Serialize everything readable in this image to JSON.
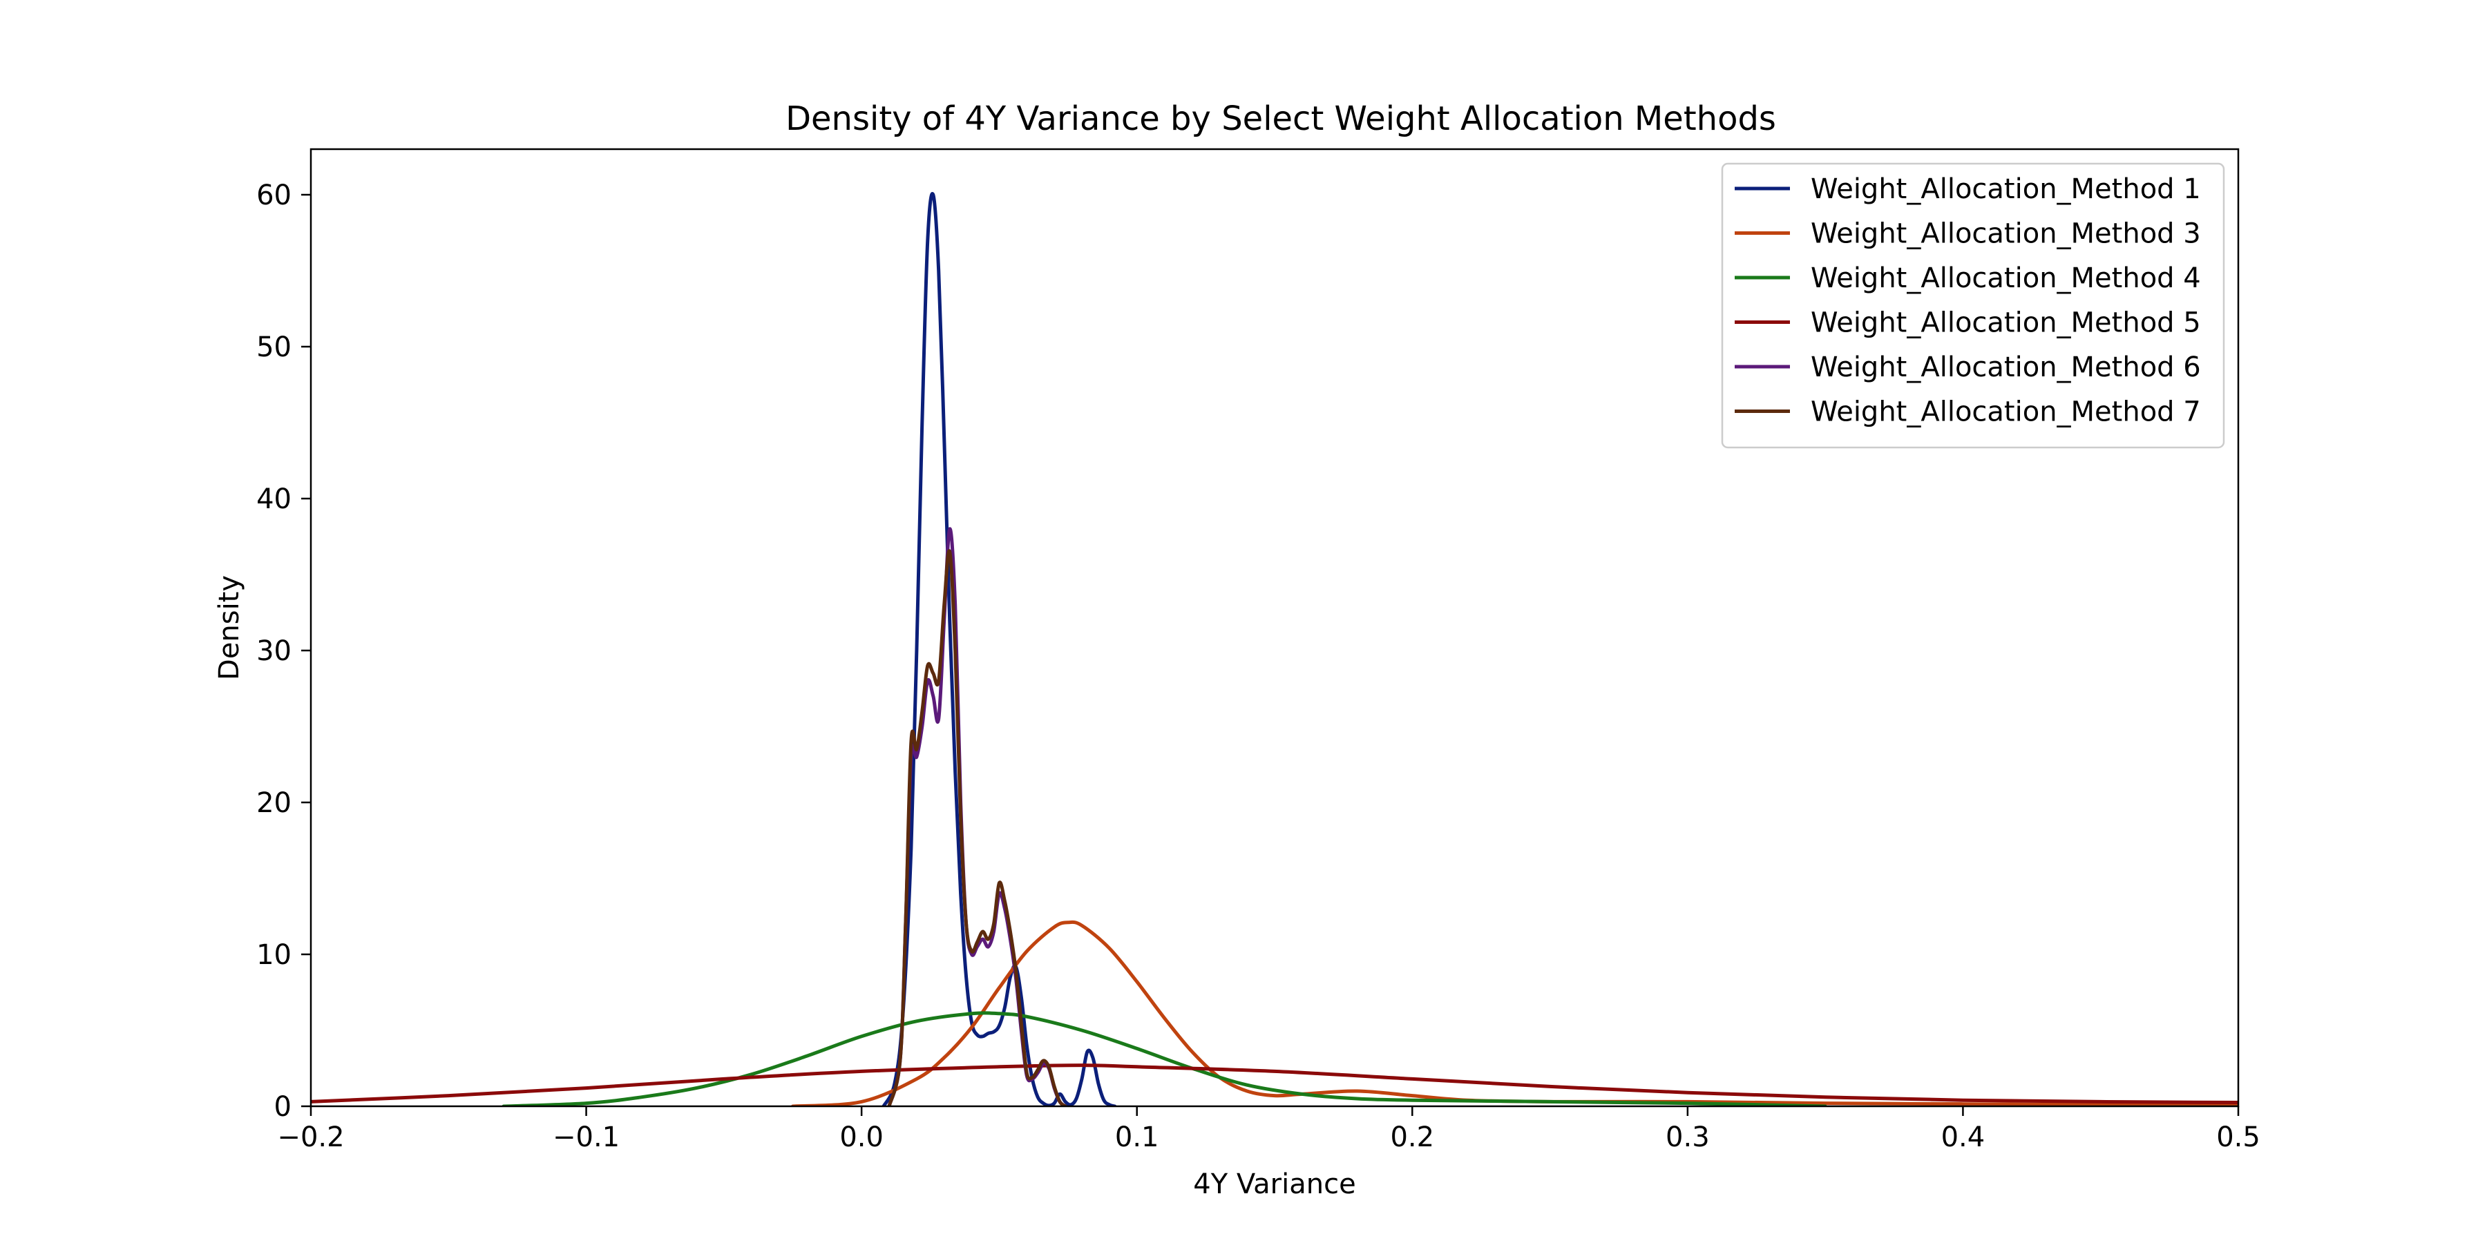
{
  "chart_data": {
    "type": "line",
    "title": "Density of 4Y Variance by Select Weight Allocation Methods",
    "xlabel": "4Y Variance",
    "ylabel": "Density",
    "xlim": [
      -0.2,
      0.5
    ],
    "ylim": [
      0,
      63
    ],
    "xticks": [
      -0.2,
      -0.1,
      0.0,
      0.1,
      0.2,
      0.3,
      0.4,
      0.5
    ],
    "xtick_labels": [
      "−0.2",
      "−0.1",
      "0.0",
      "0.1",
      "0.2",
      "0.3",
      "0.4",
      "0.5"
    ],
    "yticks": [
      0,
      10,
      20,
      30,
      40,
      50,
      60
    ],
    "ytick_labels": [
      "0",
      "10",
      "20",
      "30",
      "40",
      "50",
      "60"
    ],
    "grid": false,
    "legend_position": "top-right",
    "series": [
      {
        "name": "Weight_Allocation_Method 1",
        "color": "#0b1f7a",
        "x": [
          0.008,
          0.012,
          0.015,
          0.018,
          0.02,
          0.022,
          0.024,
          0.026,
          0.028,
          0.03,
          0.032,
          0.034,
          0.036,
          0.038,
          0.04,
          0.042,
          0.044,
          0.046,
          0.048,
          0.05,
          0.052,
          0.054,
          0.056,
          0.058,
          0.06,
          0.062,
          0.064,
          0.066,
          0.068,
          0.07,
          0.072,
          0.074,
          0.076,
          0.078,
          0.08,
          0.082,
          0.084,
          0.086,
          0.088,
          0.09,
          0.092
        ],
        "y": [
          0,
          1.5,
          6,
          17,
          30,
          45,
          57,
          60,
          55,
          44,
          32,
          22,
          14,
          8.5,
          5.5,
          4.7,
          4.6,
          4.8,
          4.9,
          5.3,
          6.5,
          8.5,
          9.2,
          7.2,
          4,
          1.8,
          0.6,
          0.2,
          0.05,
          0.2,
          0.8,
          0.3,
          0.1,
          0.5,
          1.8,
          3.6,
          3.2,
          1.5,
          0.4,
          0.1,
          0
        ]
      },
      {
        "name": "Weight_Allocation_Method 3",
        "color": "#c0430f",
        "x": [
          -0.025,
          0.0,
          0.02,
          0.03,
          0.04,
          0.05,
          0.06,
          0.07,
          0.075,
          0.08,
          0.09,
          0.1,
          0.11,
          0.12,
          0.13,
          0.14,
          0.15,
          0.16,
          0.18,
          0.2,
          0.22,
          0.25,
          0.3,
          0.35,
          0.4,
          0.45,
          0.5
        ],
        "y": [
          0,
          0.3,
          1.8,
          3.2,
          5.2,
          7.8,
          10.2,
          11.8,
          12.1,
          11.9,
          10.4,
          8.2,
          5.8,
          3.6,
          1.9,
          1.0,
          0.7,
          0.8,
          1.0,
          0.7,
          0.4,
          0.3,
          0.3,
          0.2,
          0.15,
          0.1,
          0.05
        ]
      },
      {
        "name": "Weight_Allocation_Method 4",
        "color": "#1a7a1a",
        "x": [
          -0.13,
          -0.1,
          -0.08,
          -0.06,
          -0.04,
          -0.02,
          0.0,
          0.02,
          0.04,
          0.05,
          0.06,
          0.08,
          0.1,
          0.12,
          0.14,
          0.16,
          0.18,
          0.2,
          0.25,
          0.3,
          0.35
        ],
        "y": [
          0,
          0.2,
          0.6,
          1.2,
          2.1,
          3.3,
          4.6,
          5.6,
          6.1,
          6.1,
          5.9,
          5.0,
          3.8,
          2.5,
          1.4,
          0.8,
          0.5,
          0.4,
          0.3,
          0.2,
          0
        ]
      },
      {
        "name": "Weight_Allocation_Method 5",
        "color": "#8b0a0a",
        "x": [
          -0.2,
          -0.15,
          -0.1,
          -0.05,
          0.0,
          0.05,
          0.08,
          0.1,
          0.15,
          0.2,
          0.25,
          0.3,
          0.35,
          0.4,
          0.45,
          0.5
        ],
        "y": [
          0.3,
          0.7,
          1.2,
          1.8,
          2.3,
          2.6,
          2.7,
          2.6,
          2.3,
          1.8,
          1.3,
          0.9,
          0.6,
          0.4,
          0.3,
          0.25
        ]
      },
      {
        "name": "Weight_Allocation_Method 6",
        "color": "#5b1a7a",
        "x": [
          0.01,
          0.014,
          0.016,
          0.018,
          0.02,
          0.022,
          0.024,
          0.026,
          0.028,
          0.03,
          0.032,
          0.034,
          0.036,
          0.038,
          0.04,
          0.042,
          0.044,
          0.046,
          0.048,
          0.05,
          0.052,
          0.054,
          0.056,
          0.058,
          0.06,
          0.062,
          0.064,
          0.066,
          0.068,
          0.07,
          0.072,
          0.074
        ],
        "y": [
          0,
          3,
          12,
          23,
          23,
          25,
          28,
          27,
          25.5,
          32,
          38,
          33,
          20,
          12,
          10,
          10.5,
          11,
          10.5,
          11.5,
          14,
          13,
          11,
          8.5,
          5,
          2,
          1.8,
          2.2,
          2.8,
          2.5,
          1.2,
          0.3,
          0
        ]
      },
      {
        "name": "Weight_Allocation_Method 7",
        "color": "#5c2a0d",
        "x": [
          0.01,
          0.014,
          0.016,
          0.018,
          0.02,
          0.022,
          0.024,
          0.026,
          0.028,
          0.03,
          0.032,
          0.034,
          0.036,
          0.038,
          0.04,
          0.042,
          0.044,
          0.046,
          0.048,
          0.05,
          0.052,
          0.054,
          0.056,
          0.058,
          0.06,
          0.062,
          0.064,
          0.066,
          0.068,
          0.07,
          0.072,
          0.074
        ],
        "y": [
          0,
          3,
          12,
          24,
          23.5,
          26,
          29,
          28.5,
          28,
          33,
          36.5,
          30,
          19,
          12,
          10.2,
          10.8,
          11.5,
          11,
          12,
          14.7,
          13.5,
          11.5,
          9,
          5.5,
          2.2,
          1.9,
          2.4,
          3.0,
          2.6,
          1.3,
          0.3,
          0
        ]
      }
    ]
  }
}
